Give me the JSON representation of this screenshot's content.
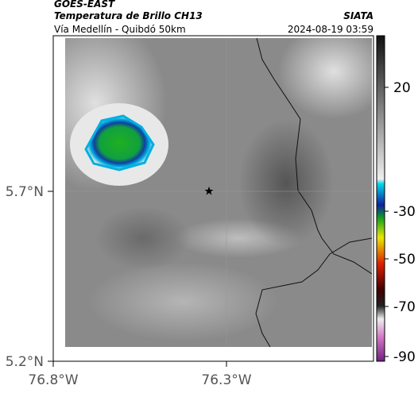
{
  "header": {
    "source": "GOES-EAST",
    "product": "Temperatura de Brillo CH13",
    "agency": "SIATA",
    "route": "Vía Medellín - Quibdó 50km",
    "timestamp": "2024-08-19 03:59"
  },
  "axes": {
    "lat_ticks": [
      "5.7°N",
      "5.2°N"
    ],
    "lon_ticks": [
      "76.8°W",
      "76.3°W"
    ]
  },
  "colorbar": {
    "ticks": [
      "20",
      "-30",
      "-50",
      "-70",
      "-90"
    ]
  }
}
